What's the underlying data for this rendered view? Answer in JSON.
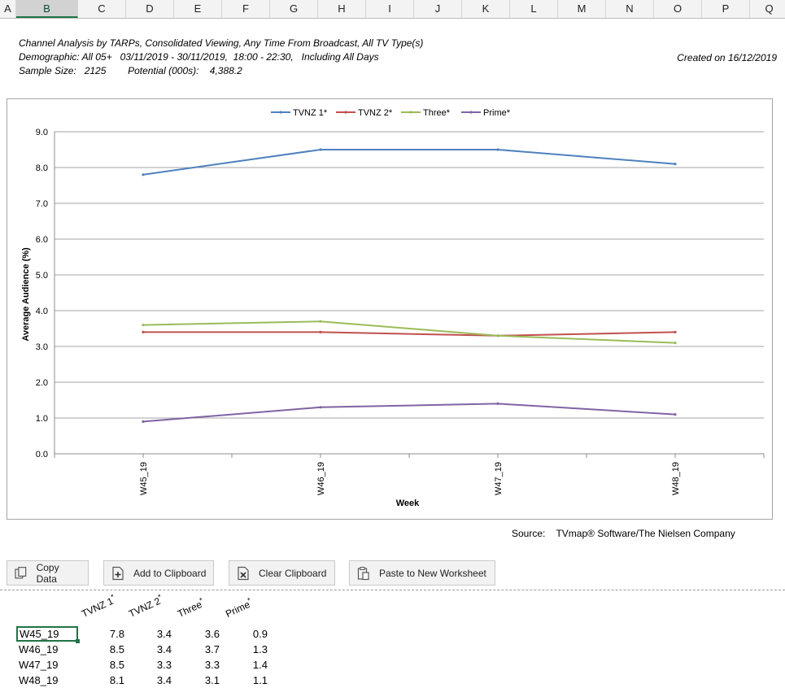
{
  "columns": [
    "A",
    "B",
    "C",
    "D",
    "E",
    "F",
    "G",
    "H",
    "I",
    "J",
    "K",
    "L",
    "M",
    "N",
    "O",
    "P",
    "Q"
  ],
  "selected_column": "B",
  "report": {
    "line1": "Channel Analysis by TARPs, Consolidated Viewing, Any Time From Broadcast, All TV Type(s)",
    "line2": "Demographic: All 05+   03/11/2019 - 30/11/2019,  18:00 - 22:30,   Including All Days",
    "line3": "Sample Size:   2125        Potential (000s):    4,388.2",
    "created": "Created on 16/12/2019"
  },
  "source": "Source:    TVmap® Software/The Nielsen Company",
  "buttons": {
    "copy": "Copy Data",
    "add": "Add to Clipboard",
    "clear": "Clear Clipboard",
    "paste": "Paste to New Worksheet"
  },
  "chart_data": {
    "type": "line",
    "categories": [
      "W45_19",
      "W46_19",
      "W47_19",
      "W48_19"
    ],
    "series": [
      {
        "name": "TVNZ 1*",
        "color": "#4f81bd",
        "values": [
          7.8,
          8.5,
          8.5,
          8.1
        ]
      },
      {
        "name": "TVNZ 2*",
        "color": "#c0504d",
        "values": [
          3.4,
          3.4,
          3.3,
          3.4
        ]
      },
      {
        "name": "Three*",
        "color": "#9bbb59",
        "values": [
          3.6,
          3.7,
          3.3,
          3.1
        ]
      },
      {
        "name": "Prime*",
        "color": "#8064a2",
        "values": [
          0.9,
          1.3,
          1.4,
          1.1
        ]
      }
    ],
    "xlabel": "Week",
    "ylabel": "Average Audience (%)",
    "ylim": [
      0,
      9
    ],
    "yticks": [
      "0.0",
      "1.0",
      "2.0",
      "3.0",
      "4.0",
      "5.0",
      "6.0",
      "7.0",
      "8.0",
      "9.0"
    ],
    "grid": true,
    "legend": "top-center"
  },
  "table": {
    "headers": [
      "TVNZ 1",
      "TVNZ 2",
      "Three",
      "Prime"
    ],
    "header_mark": "*",
    "rows": [
      {
        "week": "W45_19",
        "values": [
          "7.8",
          "3.4",
          "3.6",
          "0.9"
        ]
      },
      {
        "week": "W46_19",
        "values": [
          "8.5",
          "3.4",
          "3.7",
          "1.3"
        ]
      },
      {
        "week": "W47_19",
        "values": [
          "8.5",
          "3.3",
          "3.3",
          "1.4"
        ]
      },
      {
        "week": "W48_19",
        "values": [
          "8.1",
          "3.4",
          "3.1",
          "1.1"
        ]
      }
    ]
  }
}
